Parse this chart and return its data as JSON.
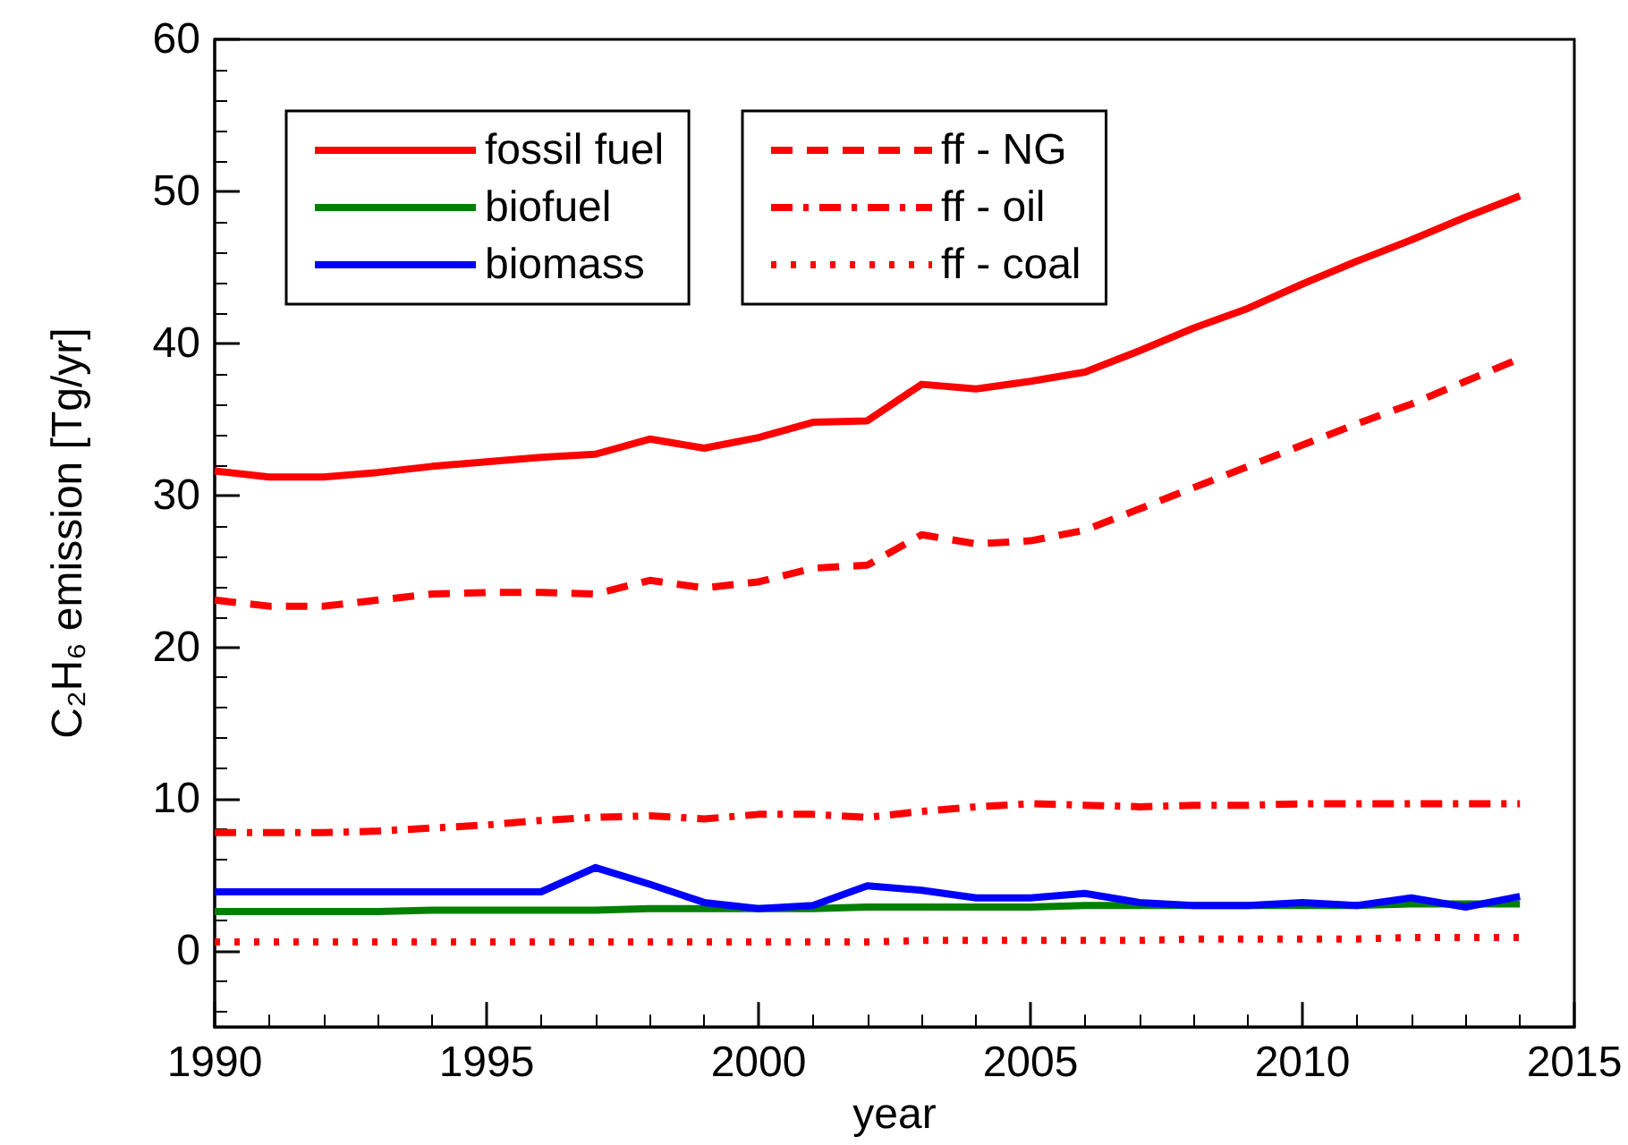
{
  "chart_data": {
    "type": "line",
    "xlabel": "year",
    "ylabel": "C₂H₆ emission [Tg/yr]",
    "x": [
      1990,
      1991,
      1992,
      1993,
      1994,
      1995,
      1996,
      1997,
      1998,
      1999,
      2000,
      2001,
      2002,
      2003,
      2004,
      2005,
      2006,
      2007,
      2008,
      2009,
      2010,
      2011,
      2012,
      2013,
      2014
    ],
    "series": [
      {
        "name": "fossil fuel",
        "color": "#ff0000",
        "line_style": "solid",
        "values": [
          31.6,
          31.2,
          31.2,
          31.5,
          31.9,
          32.2,
          32.5,
          32.7,
          33.7,
          33.1,
          33.8,
          34.8,
          34.9,
          37.3,
          37.0,
          37.5,
          38.1,
          39.5,
          41.0,
          42.3,
          43.9,
          45.4,
          46.8,
          48.3,
          49.7
        ]
      },
      {
        "name": "biofuel",
        "color": "#008000",
        "line_style": "solid",
        "values": [
          2.6,
          2.6,
          2.6,
          2.6,
          2.7,
          2.7,
          2.7,
          2.7,
          2.8,
          2.8,
          2.8,
          2.8,
          2.9,
          2.9,
          2.9,
          2.9,
          3.0,
          3.0,
          3.0,
          3.0,
          3.0,
          3.0,
          3.1,
          3.1,
          3.1
        ]
      },
      {
        "name": "biomass",
        "color": "#0000ff",
        "line_style": "solid",
        "values": [
          3.9,
          3.9,
          3.9,
          3.9,
          3.9,
          3.9,
          3.9,
          5.5,
          4.4,
          3.2,
          2.8,
          3.0,
          4.3,
          4.0,
          3.5,
          3.5,
          3.8,
          3.2,
          3.0,
          3.0,
          3.2,
          3.0,
          3.5,
          2.9,
          3.6
        ]
      },
      {
        "name": "ff - NG",
        "color": "#ff0000",
        "line_style": "dashed",
        "values": [
          23.1,
          22.7,
          22.7,
          23.1,
          23.5,
          23.6,
          23.6,
          23.5,
          24.4,
          23.9,
          24.3,
          25.2,
          25.4,
          27.4,
          26.8,
          27.0,
          27.7,
          29.1,
          30.5,
          31.9,
          33.3,
          34.7,
          36.0,
          37.5,
          39.0
        ]
      },
      {
        "name": "ff - oil",
        "color": "#ff0000",
        "line_style": "dashdot",
        "values": [
          7.8,
          7.8,
          7.8,
          7.9,
          8.1,
          8.3,
          8.6,
          8.8,
          8.9,
          8.7,
          9.0,
          9.0,
          8.8,
          9.2,
          9.5,
          9.7,
          9.6,
          9.5,
          9.6,
          9.6,
          9.7,
          9.7,
          9.7,
          9.7,
          9.7
        ]
      },
      {
        "name": "ff - coal",
        "color": "#ff0000",
        "line_style": "dotted",
        "values": [
          0.6,
          0.6,
          0.6,
          0.6,
          0.6,
          0.6,
          0.6,
          0.6,
          0.6,
          0.6,
          0.6,
          0.6,
          0.6,
          0.7,
          0.7,
          0.7,
          0.7,
          0.7,
          0.8,
          0.8,
          0.8,
          0.8,
          0.9,
          0.9,
          0.9
        ]
      }
    ],
    "xlim": [
      1990,
      2015
    ],
    "xticks": [
      1990,
      1995,
      2000,
      2005,
      2010,
      2015
    ],
    "ylim": [
      -5,
      60
    ],
    "yticks": [
      0,
      10,
      20,
      30,
      40,
      50,
      60
    ],
    "grid": false,
    "legend": "top left",
    "marker": "none"
  }
}
